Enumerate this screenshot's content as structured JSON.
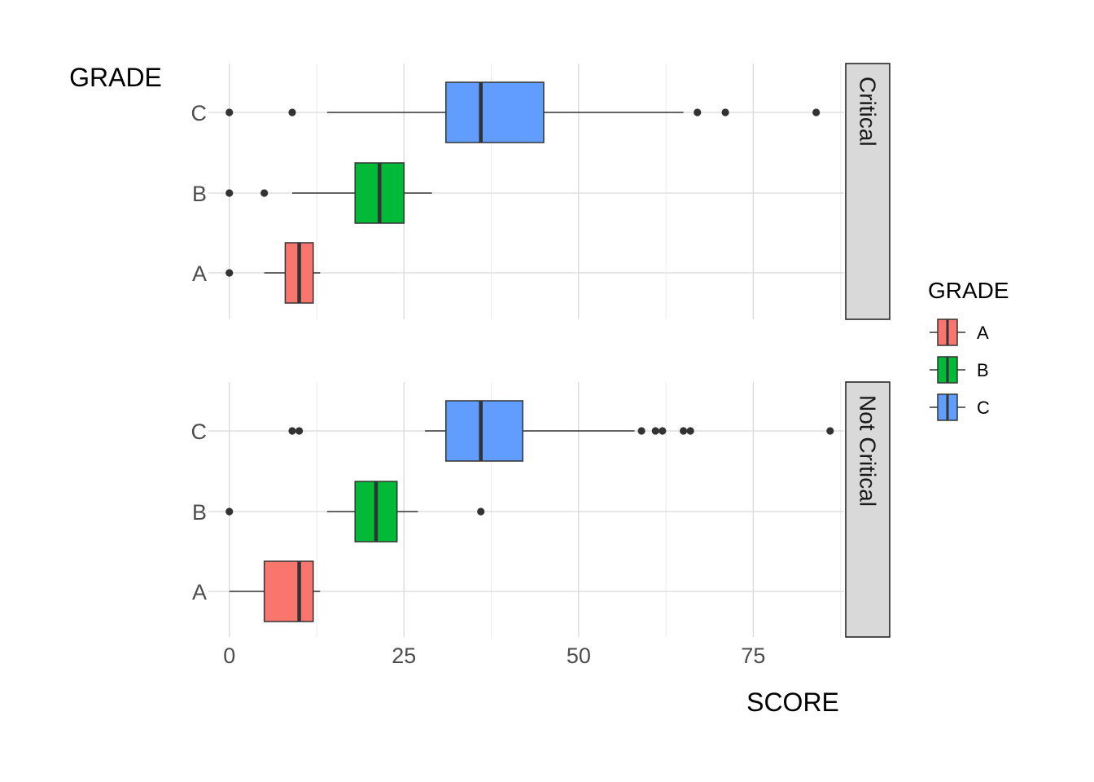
{
  "chart_data": {
    "type": "boxplot",
    "orientation": "horizontal",
    "xlabel": "SCORE",
    "ylabel": "GRADE",
    "xlim": [
      -3,
      88
    ],
    "x_ticks": [
      0,
      25,
      50,
      75
    ],
    "x_tick_labels": [
      "0",
      "25",
      "50",
      "75"
    ],
    "categories": [
      "A",
      "B",
      "C"
    ],
    "grid": true,
    "facet_strip_position": "right",
    "legend": {
      "title": "GRADE",
      "position": "right",
      "entries": [
        {
          "label": "A",
          "color": "#F8766D"
        },
        {
          "label": "B",
          "color": "#00BA38"
        },
        {
          "label": "C",
          "color": "#619CFF"
        }
      ]
    },
    "facets": [
      {
        "label": "Critical",
        "boxes": [
          {
            "category": "A",
            "whisker_low": 5,
            "q1": 8,
            "median": 10,
            "q3": 12,
            "whisker_high": 13,
            "outliers": [
              0
            ]
          },
          {
            "category": "B",
            "whisker_low": 9,
            "q1": 18,
            "median": 21.5,
            "q3": 25,
            "whisker_high": 29,
            "outliers": [
              0,
              5
            ]
          },
          {
            "category": "C",
            "whisker_low": 14,
            "q1": 31,
            "median": 36,
            "q3": 45,
            "whisker_high": 65,
            "outliers": [
              0,
              9,
              67,
              71,
              84
            ]
          }
        ]
      },
      {
        "label": "Not Critical",
        "boxes": [
          {
            "category": "A",
            "whisker_low": 0,
            "q1": 5,
            "median": 10,
            "q3": 12,
            "whisker_high": 13,
            "outliers": []
          },
          {
            "category": "B",
            "whisker_low": 14,
            "q1": 18,
            "median": 21,
            "q3": 24,
            "whisker_high": 27,
            "outliers": [
              0,
              36
            ]
          },
          {
            "category": "C",
            "whisker_low": 28,
            "q1": 31,
            "median": 36,
            "q3": 42,
            "whisker_high": 58,
            "outliers": [
              9,
              10,
              59,
              61,
              62,
              65,
              66,
              86
            ]
          }
        ]
      }
    ]
  }
}
